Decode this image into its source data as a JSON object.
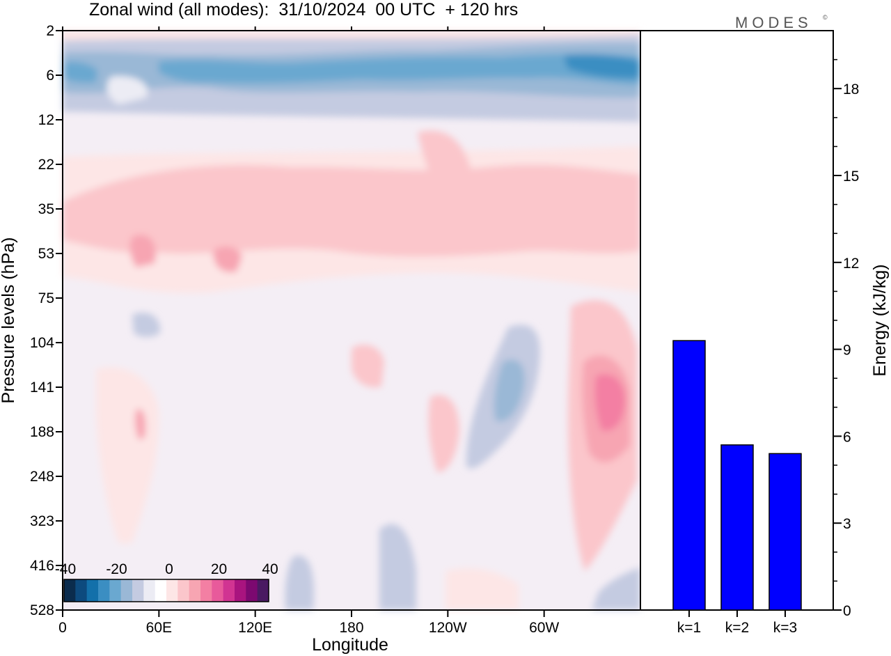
{
  "title": "Zonal wind (all modes):  31/10/2024  00 UTC  + 120 hrs",
  "brand": "MODES",
  "brand_mark": "©",
  "chart_data": [
    {
      "type": "heatmap",
      "title": "Zonal wind (all modes):  31/10/2024  00 UTC  + 120 hrs",
      "xlabel": "Longitude",
      "ylabel": "Pressure levels (hPa)",
      "x_ticks": [
        "0",
        "60E",
        "120E",
        "180",
        "120W",
        "60W"
      ],
      "y_ticks": [
        "2",
        "6",
        "12",
        "22",
        "35",
        "53",
        "75",
        "104",
        "141",
        "188",
        "248",
        "323",
        "416",
        "528"
      ],
      "colorbar": {
        "tick_labels": [
          "-40",
          "-20",
          "0",
          "20",
          "40"
        ],
        "range": [
          -40,
          40
        ],
        "colors": [
          "#0b2c4d",
          "#0d4a7e",
          "#1370aa",
          "#3b8ec2",
          "#6aa8d0",
          "#9ab8d6",
          "#c4cbe1",
          "#ececf4",
          "#ffffff",
          "#fde6e6",
          "#fbc6cb",
          "#f7a5b2",
          "#f37fa3",
          "#e85a9b",
          "#d13492",
          "#a9147f",
          "#7c0970",
          "#4a1a62"
        ]
      },
      "note_bands": [
        {
          "levels": "2-12 hPa",
          "sign": "easterly",
          "approx_min": -30
        },
        {
          "levels": "22-75 hPa",
          "sign": "westerly",
          "approx_max": 15
        },
        {
          "levels": "104-248 hPa near 30W",
          "sign": "westerly",
          "approx_max": 25
        },
        {
          "levels": "104-248 hPa near 75W",
          "sign": "easterly",
          "approx_min": -20
        }
      ]
    },
    {
      "type": "bar",
      "categories": [
        "k=1",
        "k=2",
        "k=3"
      ],
      "values": [
        9.3,
        5.7,
        5.4
      ],
      "ylabel": "Energy (kJ/kg)",
      "y_ticks": [
        "0",
        "3",
        "6",
        "9",
        "12",
        "15",
        "18"
      ],
      "ylim": [
        0,
        20
      ],
      "bar_color": "#0000ff"
    }
  ]
}
